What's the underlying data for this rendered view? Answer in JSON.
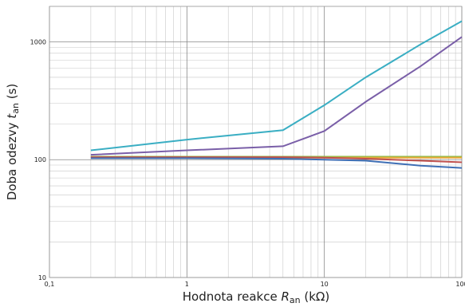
{
  "chart_data": {
    "type": "line",
    "xlabel": {
      "text": "Hodnota reakce ",
      "var": "R",
      "sub": "an",
      "unit": "(kΩ)"
    },
    "ylabel": {
      "text": "Doba odezvy ",
      "var": "t",
      "sub": "an",
      "unit": "(s)"
    },
    "xscale": "log",
    "yscale": "log",
    "grid": true,
    "minor_grid": true,
    "xlim": [
      0.1,
      100
    ],
    "ylim": [
      10,
      2000
    ],
    "xticks": [
      {
        "value": 0.1,
        "label": "0,1"
      },
      1,
      10,
      100
    ],
    "yticks": [
      10,
      100,
      1000
    ],
    "x": [
      0.2,
      1,
      5,
      10,
      20,
      50,
      100
    ],
    "series": [
      {
        "color": "#3aaec3",
        "values": [
          120,
          148,
          178,
          290,
          500,
          950,
          1500
        ]
      },
      {
        "color": "#7a5fa8",
        "values": [
          110,
          120,
          130,
          175,
          310,
          620,
          1100
        ]
      },
      {
        "color": "#8dbb4a",
        "values": [
          106,
          106,
          106,
          106,
          106,
          106,
          106
        ]
      },
      {
        "color": "#e8a838",
        "values": [
          104,
          104,
          104,
          104,
          104,
          104,
          104
        ]
      },
      {
        "color": "#c0504d",
        "values": [
          105,
          105,
          105,
          104,
          102,
          98,
          95
        ]
      },
      {
        "color": "#3f6fb5",
        "values": [
          103,
          103,
          102,
          100,
          98,
          89,
          85
        ]
      }
    ]
  }
}
